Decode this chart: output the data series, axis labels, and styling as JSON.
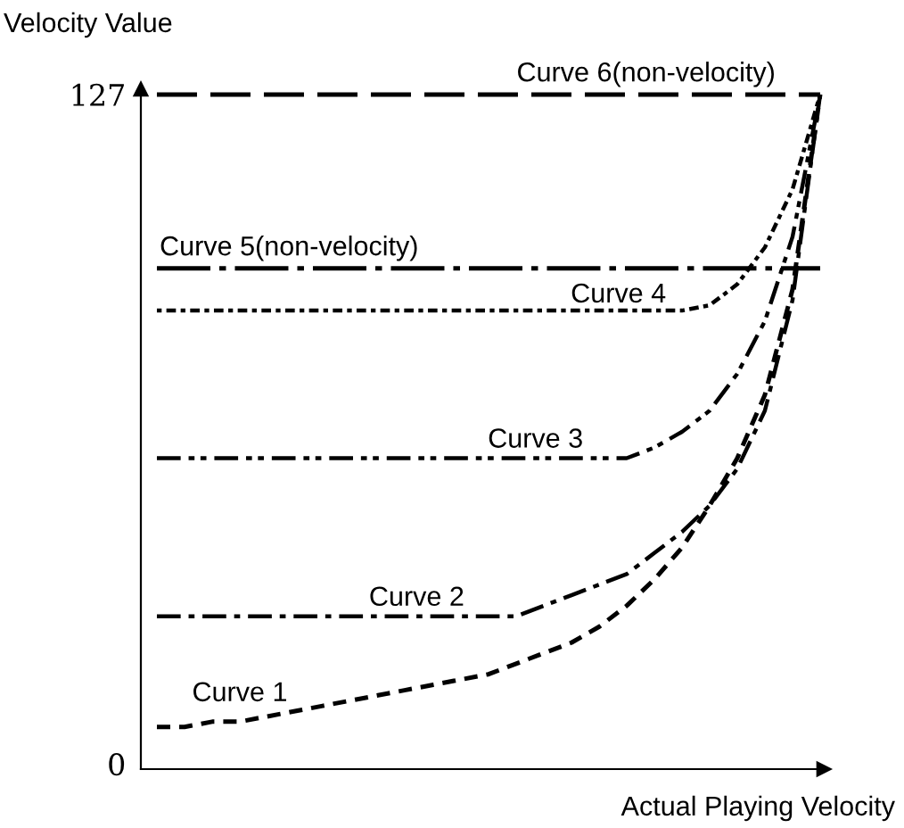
{
  "chart_data": {
    "type": "line",
    "xlabel": "Actual Playing Velocity",
    "ylabel": "Velocity Value",
    "categories": [
      null,
      null,
      null,
      null,
      null,
      null,
      null,
      null,
      null,
      null,
      null,
      null,
      null,
      null,
      null,
      null,
      null,
      null,
      null,
      null,
      null,
      null,
      null,
      null,
      null
    ],
    "ylim": [
      -1,
      128
    ],
    "yticks": [
      0,
      127
    ],
    "grid": false,
    "legend": false,
    "series": [
      {
        "name": "Curve 1",
        "color": "#000000",
        "line_style": "dashed",
        "values": [
          7,
          7,
          8,
          8,
          9,
          10,
          11,
          12,
          13,
          14,
          15,
          16,
          17,
          19,
          21,
          23,
          26,
          30,
          35,
          41,
          49,
          58,
          70,
          90,
          127
        ]
      },
      {
        "name": "Curve 2",
        "color": "#000000",
        "line_style": "dashed",
        "values": [
          28,
          28,
          28,
          28,
          28,
          28,
          28,
          28,
          28,
          28,
          28,
          28,
          28,
          28,
          30,
          32,
          34,
          36,
          40,
          44,
          49,
          56,
          67,
          88,
          127
        ]
      },
      {
        "name": "Curve 3",
        "color": "#000000",
        "line_style": "dashed",
        "values": [
          58,
          58,
          58,
          58,
          58,
          58,
          58,
          58,
          58,
          58,
          58,
          58,
          58,
          58,
          58,
          58,
          58,
          58,
          60,
          63,
          67,
          74,
          84,
          100,
          127
        ]
      },
      {
        "name": "Curve 4",
        "color": "#000000",
        "line_style": "dotted",
        "values": [
          86,
          86,
          86,
          86,
          86,
          86,
          86,
          86,
          86,
          86,
          86,
          86,
          86,
          86,
          86,
          86,
          86,
          86,
          86,
          86,
          87,
          91,
          98,
          109,
          127
        ]
      },
      {
        "name": "Curve 5(non-velocity)",
        "color": "#000000",
        "line_style": "dashed",
        "values": [
          94,
          94,
          94,
          94,
          94,
          94,
          94,
          94,
          94,
          94,
          94,
          94,
          94,
          94,
          94,
          94,
          94,
          94,
          94,
          94,
          94,
          94,
          94,
          94,
          94
        ]
      },
      {
        "name": "Curve 6(non-velocity)",
        "color": "#000000",
        "line_style": "dashed",
        "values": [
          127,
          127,
          127,
          127,
          127,
          127,
          127,
          127,
          127,
          127,
          127,
          127,
          127,
          127,
          127,
          127,
          127,
          127,
          127,
          127,
          127,
          127,
          127,
          127,
          127
        ]
      }
    ]
  }
}
